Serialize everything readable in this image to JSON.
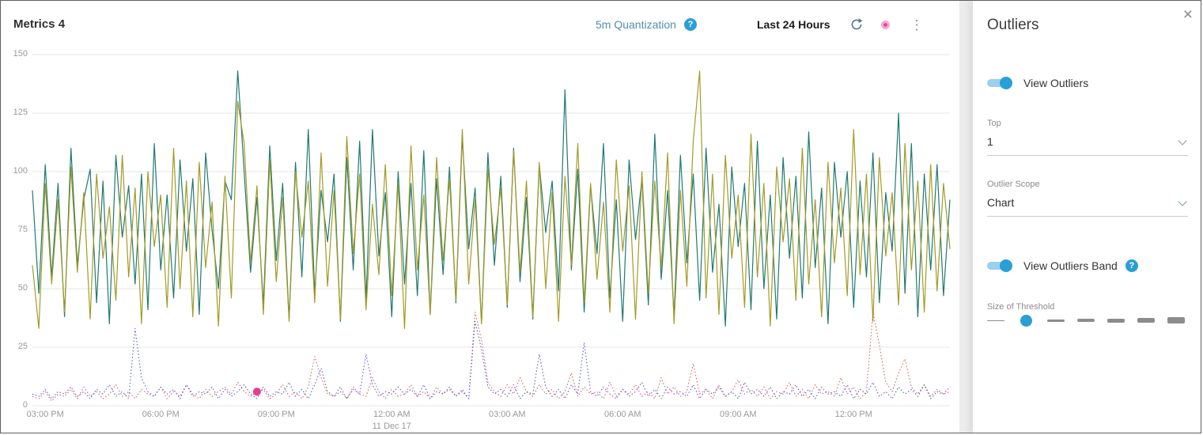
{
  "header": {
    "title": "Metrics 4",
    "quantization_label": "5m Quantization",
    "time_range_label": "Last 24 Hours"
  },
  "icons": {
    "help": "?",
    "close": "×",
    "menu": "⋮",
    "refresh": "circular-arrow"
  },
  "colors": {
    "accent_blue": "#2a9fd6",
    "series_teal": "#1f7a70",
    "series_olive": "#a59a25",
    "band_red": "#e05c5c",
    "band_blue": "#5b5bd6",
    "outlier_pink": "#ea3b8f"
  },
  "panel": {
    "title": "Outliers",
    "view_outliers_label": "View Outliers",
    "view_outliers_on": true,
    "top_label": "Top",
    "top_value": "1",
    "outlier_scope_label": "Outlier Scope",
    "outlier_scope_value": "Chart",
    "view_outliers_band_label": "View Outliers Band",
    "view_outliers_band_on": true,
    "size_of_threshold_label": "Size of Threshold",
    "threshold_options": [
      1,
      2,
      3,
      4,
      5,
      6,
      8
    ],
    "threshold_selected_index": 1
  },
  "chart_data": {
    "type": "line",
    "title": "Metrics 4",
    "ylim": [
      0,
      150
    ],
    "y_ticks": [
      0,
      25,
      50,
      75,
      100,
      125,
      150
    ],
    "points_per_series": 144,
    "x_ticks": [
      {
        "label": "03:00 PM",
        "index": 2
      },
      {
        "label": "06:00 PM",
        "index": 20
      },
      {
        "label": "09:00 PM",
        "index": 38
      },
      {
        "label": "12:00 AM",
        "index": 56
      },
      {
        "label": "03:00 AM",
        "index": 74
      },
      {
        "label": "06:00 AM",
        "index": 92
      },
      {
        "label": "09:00 AM",
        "index": 110
      },
      {
        "label": "12:00 PM",
        "index": 128
      }
    ],
    "x_date": {
      "label": "11 Dec 17",
      "index": 56
    },
    "series": [
      {
        "name": "series-teal",
        "color": "#1f7a70",
        "style": "solid",
        "values": [
          92,
          48,
          103,
          55,
          95,
          38,
          110,
          60,
          88,
          101,
          44,
          96,
          35,
          107,
          72,
          94,
          52,
          99,
          41,
          112,
          58,
          90,
          46,
          105,
          66,
          97,
          39,
          108,
          75,
          50,
          96,
          88,
          143,
          100,
          57,
          89,
          43,
          111,
          62,
          95,
          37,
          104,
          55,
          118,
          48,
          92,
          70,
          99,
          36,
          106,
          58,
          113,
          45,
          118,
          64,
          91,
          38,
          100,
          52,
          95,
          47,
          109,
          39,
          97,
          56,
          102,
          44,
          115,
          67,
          93,
          35,
          108,
          60,
          98,
          42,
          110,
          53,
          89,
          37,
          103,
          74,
          96,
          49,
          135,
          58,
          101,
          40,
          94,
          65,
          112,
          46,
          88,
          36,
          105,
          71,
          97,
          43,
          116,
          54,
          92,
          38,
          107,
          61,
          99,
          45,
          110,
          57,
          86,
          34,
          102,
          68,
          95,
          41,
          113,
          50,
          90,
          37,
          106,
          63,
          98,
          46,
          117,
          59,
          93,
          35,
          104,
          72,
          100,
          42,
          96,
          55,
          108,
          44,
          91,
          66,
          125,
          48,
          112,
          38,
          99,
          58,
          103,
          47,
          88
        ]
      },
      {
        "name": "series-olive",
        "color": "#a59a25",
        "style": "solid",
        "values": [
          60,
          33,
          95,
          52,
          88,
          40,
          102,
          57,
          91,
          37,
          99,
          63,
          85,
          45,
          107,
          55,
          93,
          35,
          100,
          68,
          90,
          42,
          110,
          50,
          96,
          38,
          104,
          59,
          87,
          34,
          98,
          46,
          130,
          112,
          61,
          94,
          39,
          105,
          53,
          89,
          36,
          100,
          72,
          96,
          44,
          108,
          51,
          92,
          37,
          115,
          65,
          99,
          41,
          86,
          56,
          103,
          47,
          95,
          33,
          111,
          58,
          90,
          39,
          106,
          62,
          97,
          45,
          118,
          52,
          88,
          35,
          101,
          69,
          93,
          43,
          109,
          57,
          96,
          38,
          104,
          50,
          91,
          36,
          98,
          60,
          112,
          44,
          95,
          54,
          87,
          40,
          105,
          66,
          94,
          37,
          100,
          48,
          96,
          59,
          108,
          35,
          92,
          51,
          113,
          143,
          46,
          99,
          39,
          107,
          63,
          90,
          42,
          116,
          55,
          95,
          34,
          102,
          70,
          97,
          45,
          110,
          52,
          88,
          38,
          104,
          61,
          93,
          47,
          118,
          56,
          99,
          36,
          106,
          64,
          91,
          43,
          112,
          58,
          96,
          40,
          103,
          49,
          95,
          67
        ]
      },
      {
        "name": "outlier-band-red",
        "color": "#e05c5c",
        "style": "dotted",
        "values": [
          4,
          3,
          6,
          2,
          5,
          4,
          7,
          3,
          8,
          4,
          6,
          3,
          5,
          9,
          4,
          6,
          3,
          7,
          5,
          4,
          8,
          3,
          6,
          4,
          9,
          5,
          3,
          7,
          4,
          6,
          8,
          5,
          10,
          6,
          4,
          6,
          7,
          3,
          5,
          9,
          4,
          6,
          3,
          8,
          21,
          12,
          5,
          4,
          6,
          3,
          8,
          5,
          4,
          12,
          6,
          3,
          7,
          4,
          5,
          9,
          4,
          6,
          3,
          8,
          5,
          7,
          4,
          6,
          3,
          40,
          28,
          10,
          6,
          4,
          9,
          5,
          12,
          6,
          4,
          9,
          5,
          7,
          3,
          6,
          14,
          4,
          8,
          5,
          6,
          3,
          10,
          4,
          7,
          5,
          9,
          4,
          6,
          3,
          12,
          5,
          8,
          4,
          6,
          18,
          5,
          7,
          3,
          9,
          4,
          6,
          11,
          5,
          7,
          4,
          8,
          3,
          6,
          5,
          10,
          4,
          7,
          3,
          9,
          5,
          6,
          4,
          12,
          5,
          8,
          3,
          6,
          40,
          26,
          10,
          6,
          14,
          20,
          8,
          5,
          9,
          4,
          7,
          5,
          6
        ]
      },
      {
        "name": "outlier-band-blue",
        "color": "#5b5bd6",
        "style": "dotted",
        "values": [
          5,
          4,
          7,
          3,
          6,
          5,
          8,
          4,
          6,
          3,
          7,
          5,
          9,
          4,
          6,
          3,
          33,
          12,
          6,
          4,
          8,
          5,
          7,
          3,
          9,
          4,
          6,
          5,
          8,
          3,
          7,
          4,
          6,
          9,
          5,
          3,
          8,
          4,
          6,
          5,
          10,
          4,
          7,
          3,
          9,
          16,
          6,
          4,
          8,
          3,
          7,
          5,
          22,
          9,
          4,
          6,
          5,
          8,
          5,
          7,
          4,
          9,
          3,
          6,
          5,
          8,
          4,
          7,
          3,
          36,
          24,
          8,
          5,
          7,
          4,
          9,
          3,
          6,
          5,
          22,
          8,
          4,
          7,
          3,
          9,
          5,
          27,
          6,
          4,
          8,
          5,
          3,
          7,
          4,
          6,
          10,
          4,
          7,
          3,
          8,
          5,
          6,
          4,
          9,
          3,
          7,
          5,
          8,
          4,
          6,
          3,
          10,
          5,
          7,
          4,
          8,
          3,
          6,
          5,
          9,
          4,
          7,
          3,
          8,
          5,
          6,
          4,
          9,
          3,
          7,
          5,
          10,
          4,
          6,
          3,
          8,
          5,
          7,
          4,
          9,
          3,
          6,
          5,
          8
        ]
      }
    ],
    "outlier_point": {
      "series": "outlier-band-red",
      "index": 35,
      "value": 6,
      "color": "#ea3b8f"
    }
  }
}
